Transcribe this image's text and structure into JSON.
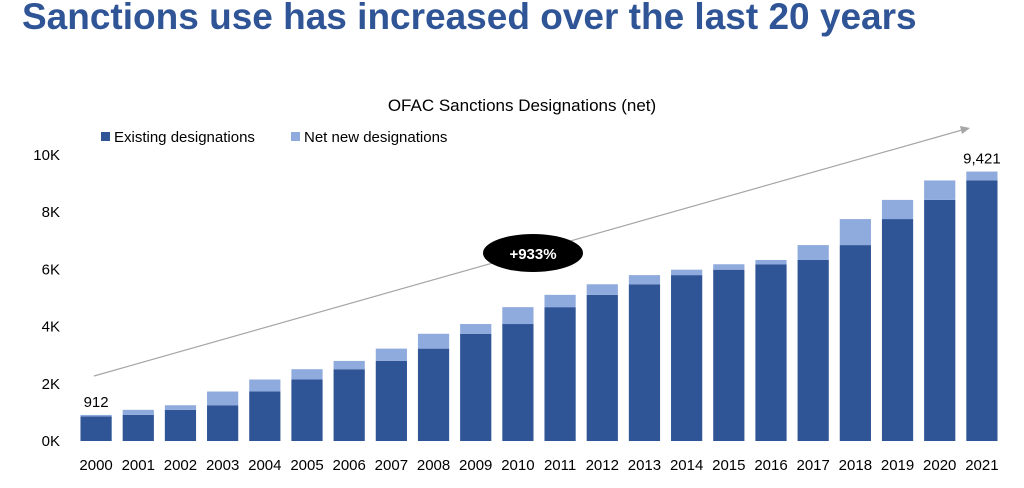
{
  "page": {
    "headline": "Sanctions use has increased over the last 20 years"
  },
  "colors": {
    "existing": "#2f5597",
    "net_new": "#8faadc",
    "headline": "#2f5597",
    "text": "#000000",
    "arrow": "#a6a6a6"
  },
  "chart_data": {
    "type": "bar",
    "stacked": true,
    "title": "OFAC Sanctions Designations (net)",
    "categories": [
      "2000",
      "2001",
      "2002",
      "2003",
      "2004",
      "2005",
      "2006",
      "2007",
      "2008",
      "2009",
      "2010",
      "2011",
      "2012",
      "2013",
      "2014",
      "2015",
      "2016",
      "2017",
      "2018",
      "2019",
      "2020",
      "2021"
    ],
    "series": [
      {
        "name": "Existing designations",
        "color": "#2f5597",
        "values": [
          860,
          912,
          1090,
          1250,
          1730,
          2150,
          2510,
          2800,
          3230,
          3750,
          4090,
          4680,
          5110,
          5480,
          5800,
          5990,
          6180,
          6330,
          6850,
          7760,
          8430,
          9110
        ]
      },
      {
        "name": "Net new designations",
        "color": "#8faadc",
        "values": [
          52,
          178,
          160,
          480,
          420,
          360,
          290,
          430,
          520,
          340,
          590,
          430,
          370,
          320,
          190,
          190,
          150,
          520,
          910,
          670,
          680,
          311
        ]
      }
    ],
    "totals": [
      912,
      1090,
      1250,
      1730,
      2150,
      2510,
      2800,
      3230,
      3750,
      4090,
      4680,
      5110,
      5480,
      5800,
      5990,
      6180,
      6330,
      6850,
      7760,
      8430,
      9110,
      9421
    ],
    "yticks": [
      "0K",
      "2K",
      "4K",
      "6K",
      "8K",
      "10K"
    ],
    "ylim": [
      0,
      10000
    ],
    "legend": "top-left",
    "grid": false,
    "data_labels": [
      {
        "category": "2000",
        "text": "912"
      },
      {
        "category": "2021",
        "text": "9,421"
      }
    ],
    "annotation": {
      "text": "+933%",
      "shape": "black-ellipse",
      "with_trend_arrow": true
    }
  }
}
